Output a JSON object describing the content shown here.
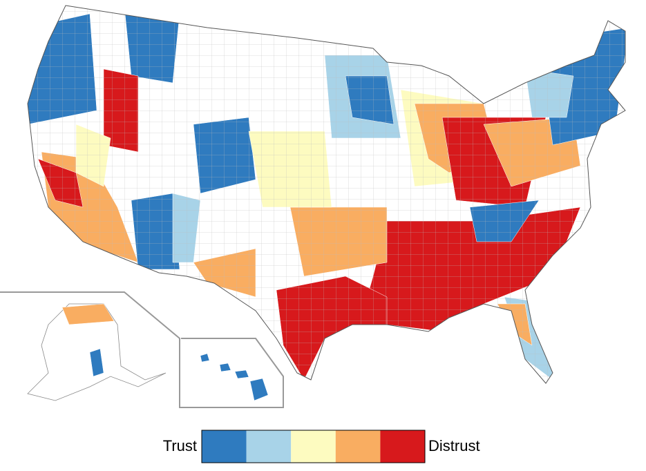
{
  "legend": {
    "low_label": "Trust",
    "high_label": "Distrust",
    "colors": [
      "#2f7bbf",
      "#a8d3e8",
      "#fdfbc0",
      "#f9ad61",
      "#d7191c"
    ]
  }
}
